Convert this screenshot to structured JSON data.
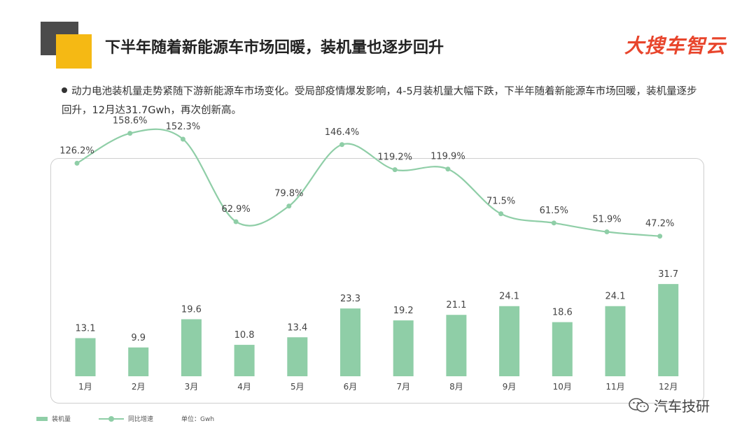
{
  "header": {
    "title": "下半年随着新能源车市场回暖，装机量也逐步回升",
    "brand": "大搜车智云"
  },
  "summary": "动力电池装机量走势紧随下游新能源车市场变化。受局部疫情爆发影响，4-5月装机量大幅下跌，下半年随着新能源车市场回暖，装机量逐步回升，12月达31.7Gwh，再次创新高。",
  "chart_data": {
    "type": "bar",
    "categories": [
      "1月",
      "2月",
      "3月",
      "4月",
      "5月",
      "6月",
      "7月",
      "8月",
      "9月",
      "10月",
      "11月",
      "12月"
    ],
    "series": [
      {
        "name": "装机量",
        "type": "bar",
        "values": [
          13.1,
          9.9,
          19.6,
          10.8,
          13.4,
          23.3,
          19.2,
          21.1,
          24.1,
          18.6,
          24.1,
          31.7
        ]
      },
      {
        "name": "同比增速",
        "type": "line",
        "values": [
          126.2,
          158.6,
          152.3,
          62.9,
          79.8,
          146.4,
          119.2,
          119.9,
          71.5,
          61.5,
          51.9,
          47.2
        ],
        "labels": [
          "126.2%",
          "158.6%",
          "152.3%",
          "62.9%",
          "79.8%",
          "146.4%",
          "119.2%",
          "119.9%",
          "71.5%",
          "61.5%",
          "51.9%",
          "47.2%"
        ]
      }
    ],
    "color": "#8fcea7",
    "grid": false,
    "legend_position": "bottom-left"
  },
  "legend": {
    "bar_label": "装机量",
    "line_label": "同比增速",
    "unit": "单位：Gwh"
  },
  "watermark": {
    "text": "汽车技研"
  }
}
